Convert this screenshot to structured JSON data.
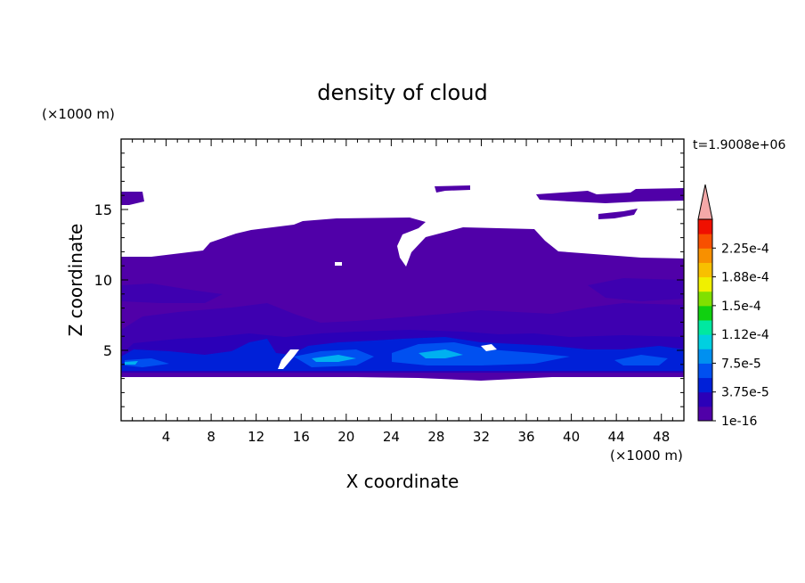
{
  "chart_data": {
    "type": "heatmap",
    "title": "density of cloud",
    "time_label": "t=1.9008e+06",
    "xlabel": "X coordinate",
    "ylabel": "Z coordinate",
    "x_unit": "(×1000 m)",
    "y_unit": "(×1000 m)",
    "xlim": [
      0,
      50
    ],
    "ylim": [
      0,
      20
    ],
    "x_ticks": [
      4,
      8,
      12,
      16,
      20,
      24,
      28,
      32,
      36,
      40,
      44,
      48
    ],
    "y_ticks": [
      5,
      10,
      15
    ],
    "x_tick_labels": [
      "4",
      "8",
      "12",
      "16",
      "20",
      "24",
      "28",
      "32",
      "36",
      "40",
      "44",
      "48"
    ],
    "y_tick_labels": [
      "5",
      "10",
      "15"
    ],
    "colorbar": {
      "label_values": [
        "1e-16",
        "3.75e-5",
        "7.5e-5",
        "1.12e-4",
        "1.5e-4",
        "1.88e-4",
        "2.25e-4"
      ],
      "colors": [
        "#5000a8",
        "#2b00b8",
        "#0020d8",
        "#0050f0",
        "#0090f0",
        "#00d0e0",
        "#00e8a0",
        "#10d010",
        "#80e000",
        "#f0f000",
        "#f8c000",
        "#f89000",
        "#f85000",
        "#f01000"
      ],
      "over_color": "#f4a8a8",
      "extend": "max"
    },
    "field_summary": {
      "cloud_base_km": 3.4,
      "cloud_top_km": [
        11.5,
        14.3
      ],
      "high_patches_km": [
        [
          0,
          2,
          15.7,
          16.3
        ],
        [
          28,
          31,
          16.1,
          16.6
        ],
        [
          37,
          48,
          15.8,
          16.4
        ],
        [
          42,
          46,
          14.4,
          14.9
        ]
      ],
      "dense_layer_km": [
        3.5,
        6.5
      ],
      "max_density_level": 5
    }
  }
}
